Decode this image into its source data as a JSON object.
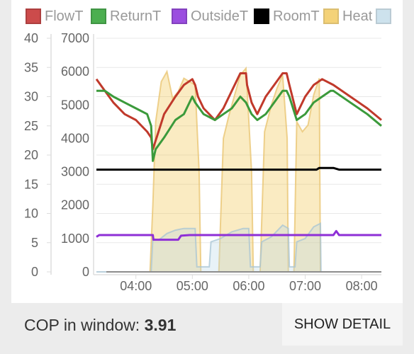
{
  "chart_data": {
    "type": "line",
    "legend_position": "top",
    "series": [
      {
        "name": "FlowT",
        "color": "#c0392b",
        "fill": "#cc4b4b",
        "axis": "left",
        "points": [
          [
            3.3,
            33
          ],
          [
            3.45,
            31
          ],
          [
            3.6,
            29
          ],
          [
            3.8,
            27
          ],
          [
            4.0,
            26
          ],
          [
            4.2,
            24
          ],
          [
            4.27,
            23
          ],
          [
            4.3,
            21
          ],
          [
            4.4,
            24
          ],
          [
            4.5,
            27
          ],
          [
            4.7,
            30
          ],
          [
            4.85,
            32
          ],
          [
            5.0,
            33
          ],
          [
            5.05,
            32
          ],
          [
            5.1,
            30
          ],
          [
            5.2,
            28
          ],
          [
            5.4,
            26
          ],
          [
            5.55,
            28
          ],
          [
            5.7,
            31
          ],
          [
            5.85,
            34
          ],
          [
            5.95,
            34
          ],
          [
            5.97,
            32
          ],
          [
            6.05,
            29
          ],
          [
            6.15,
            27
          ],
          [
            6.3,
            30
          ],
          [
            6.45,
            32
          ],
          [
            6.6,
            34
          ],
          [
            6.67,
            34
          ],
          [
            6.72,
            32
          ],
          [
            6.85,
            27
          ],
          [
            7.0,
            30
          ],
          [
            7.15,
            32
          ],
          [
            7.3,
            33
          ],
          [
            7.5,
            32
          ],
          [
            7.8,
            30
          ],
          [
            8.1,
            28
          ],
          [
            8.35,
            26
          ]
        ]
      },
      {
        "name": "ReturnT",
        "color": "#3b9a3b",
        "fill": "#4caf50",
        "axis": "left",
        "points": [
          [
            3.3,
            31
          ],
          [
            3.45,
            31
          ],
          [
            3.6,
            30
          ],
          [
            3.8,
            29
          ],
          [
            4.0,
            28
          ],
          [
            4.2,
            27
          ],
          [
            4.27,
            25
          ],
          [
            4.3,
            19
          ],
          [
            4.35,
            21
          ],
          [
            4.5,
            23
          ],
          [
            4.7,
            26
          ],
          [
            4.85,
            27
          ],
          [
            5.0,
            30
          ],
          [
            5.05,
            29
          ],
          [
            5.2,
            27
          ],
          [
            5.4,
            26
          ],
          [
            5.55,
            27
          ],
          [
            5.7,
            28
          ],
          [
            5.85,
            30
          ],
          [
            5.95,
            29
          ],
          [
            6.05,
            27
          ],
          [
            6.15,
            26
          ],
          [
            6.3,
            27
          ],
          [
            6.45,
            29
          ],
          [
            6.6,
            31
          ],
          [
            6.67,
            31
          ],
          [
            6.72,
            30
          ],
          [
            6.85,
            26
          ],
          [
            7.0,
            27
          ],
          [
            7.15,
            29
          ],
          [
            7.3,
            30
          ],
          [
            7.45,
            31
          ],
          [
            7.5,
            31
          ],
          [
            7.8,
            29
          ],
          [
            8.1,
            27
          ],
          [
            8.35,
            25
          ]
        ]
      },
      {
        "name": "OutsideT",
        "color": "#8e2fd6",
        "fill": "#9b4de0",
        "axis": "left",
        "points": [
          [
            3.3,
            6
          ],
          [
            3.35,
            6.3
          ],
          [
            4.3,
            6.3
          ],
          [
            4.31,
            5.5
          ],
          [
            4.75,
            5.5
          ],
          [
            4.8,
            6.2
          ],
          [
            4.95,
            6.3
          ],
          [
            5.3,
            6.3
          ],
          [
            5.45,
            6.3
          ],
          [
            5.9,
            6.3
          ],
          [
            6.1,
            6.3
          ],
          [
            6.5,
            6.3
          ],
          [
            6.65,
            6.3
          ],
          [
            7.25,
            6.3
          ],
          [
            7.35,
            6.3
          ],
          [
            7.5,
            6.3
          ],
          [
            7.55,
            7
          ],
          [
            7.6,
            6.3
          ],
          [
            8.35,
            6.3
          ]
        ]
      },
      {
        "name": "RoomT",
        "color": "#000000",
        "fill": "#000000",
        "axis": "left",
        "points": [
          [
            3.3,
            17.5
          ],
          [
            7.2,
            17.5
          ],
          [
            7.25,
            17.8
          ],
          [
            7.5,
            17.8
          ],
          [
            7.6,
            17.5
          ],
          [
            8.35,
            17.5
          ]
        ]
      },
      {
        "name": "Heat",
        "color": "#e8c36d",
        "fill": "#f0c040",
        "axis": "right",
        "area": true,
        "points": [
          [
            4.25,
            0
          ],
          [
            4.3,
            2000
          ],
          [
            4.35,
            4500
          ],
          [
            4.45,
            5700
          ],
          [
            4.55,
            6000
          ],
          [
            4.65,
            5200
          ],
          [
            4.75,
            5400
          ],
          [
            4.85,
            5800
          ],
          [
            4.95,
            5700
          ],
          [
            5.05,
            5600
          ],
          [
            5.12,
            3000
          ],
          [
            5.15,
            0
          ],
          [
            5.47,
            0
          ],
          [
            5.55,
            4000
          ],
          [
            5.65,
            4700
          ],
          [
            5.75,
            5300
          ],
          [
            5.85,
            5900
          ],
          [
            5.95,
            6100
          ],
          [
            6.05,
            3000
          ],
          [
            6.08,
            0
          ],
          [
            6.2,
            0
          ],
          [
            6.28,
            4200
          ],
          [
            6.4,
            5000
          ],
          [
            6.5,
            5500
          ],
          [
            6.6,
            5900
          ],
          [
            6.68,
            4000
          ],
          [
            6.7,
            0
          ],
          [
            6.8,
            0
          ],
          [
            6.85,
            4500
          ],
          [
            6.95,
            4200
          ],
          [
            7.05,
            4400
          ],
          [
            7.15,
            5300
          ],
          [
            7.25,
            5800
          ],
          [
            7.27,
            0
          ],
          [
            8.35,
            0
          ]
        ]
      },
      {
        "name": "",
        "color": "#a7c4d4",
        "fill": "#b9d6e6",
        "axis": "right",
        "area": true,
        "points": [
          [
            3.3,
            0
          ],
          [
            4.27,
            0
          ],
          [
            4.3,
            1000
          ],
          [
            4.4,
            950
          ],
          [
            4.55,
            1150
          ],
          [
            4.7,
            1250
          ],
          [
            4.85,
            1300
          ],
          [
            5.05,
            1300
          ],
          [
            5.08,
            150
          ],
          [
            5.3,
            150
          ],
          [
            5.33,
            900
          ],
          [
            5.5,
            1000
          ],
          [
            5.7,
            1200
          ],
          [
            5.9,
            1300
          ],
          [
            6.0,
            1300
          ],
          [
            6.03,
            150
          ],
          [
            6.2,
            150
          ],
          [
            6.23,
            900
          ],
          [
            6.4,
            1050
          ],
          [
            6.6,
            1400
          ],
          [
            6.7,
            1300
          ],
          [
            6.72,
            150
          ],
          [
            6.82,
            150
          ],
          [
            6.85,
            900
          ],
          [
            7.0,
            1000
          ],
          [
            7.15,
            1350
          ],
          [
            7.27,
            1450
          ],
          [
            7.28,
            0
          ],
          [
            8.35,
            0
          ]
        ]
      }
    ],
    "y_left_ticks": [
      "0",
      "5",
      "10",
      "15",
      "20",
      "25",
      "30",
      "35",
      "40"
    ],
    "y_left_range": [
      0,
      40
    ],
    "y_right_ticks": [
      "0",
      "1000",
      "2000",
      "3000",
      "4000",
      "5000",
      "6000",
      "7000"
    ],
    "y_right_range": [
      0,
      7000
    ],
    "x_ticks": [
      "04:00",
      "05:00",
      "06:00",
      "07:00",
      "08:00"
    ],
    "x_tick_values": [
      4,
      5,
      6,
      7,
      8
    ],
    "x_range": [
      3.3,
      8.35
    ],
    "grid": "horizontal"
  },
  "footer": {
    "cop_label": "COP in window:",
    "cop_value": "3.91",
    "show_detail_label": "SHOW DETAIL"
  }
}
